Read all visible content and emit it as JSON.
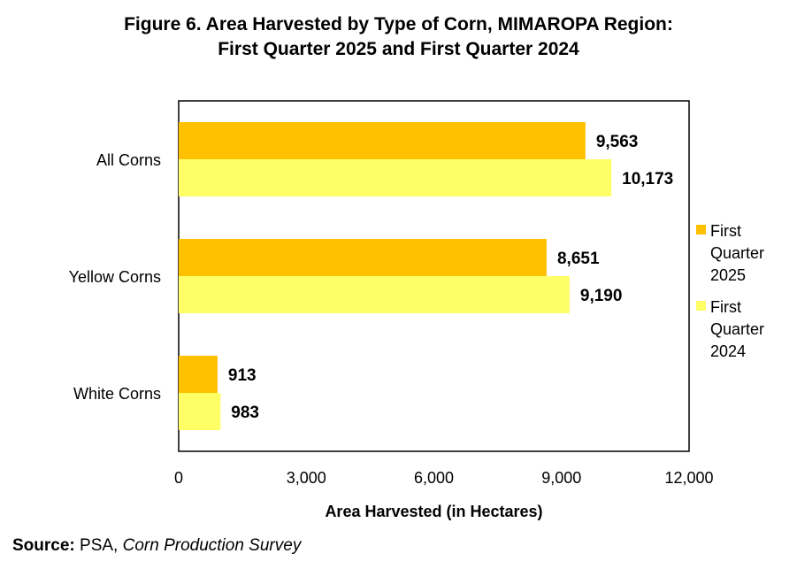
{
  "chart_data": {
    "type": "bar",
    "orientation": "horizontal",
    "title_line1": "Figure 6. Area Harvested by Type of Corn, MIMAROPA Region:",
    "title_line2": "First Quarter 2025 and First Quarter 2024",
    "categories": [
      "All Corns",
      "Yellow Corns",
      "White Corns"
    ],
    "series": [
      {
        "name_lines": [
          "First",
          "Quarter",
          "2025"
        ],
        "values": [
          9563,
          8651,
          913
        ],
        "labels": [
          "9,563",
          "8,651",
          "913"
        ],
        "color": "#FFC000"
      },
      {
        "name_lines": [
          "First",
          "Quarter",
          "2024"
        ],
        "values": [
          10173,
          9190,
          983
        ],
        "labels": [
          "10,173",
          "9,190",
          "983"
        ],
        "color": "#FFFF66"
      }
    ],
    "xlabel": "Area Harvested (in Hectares)",
    "xlim": [
      0,
      12000
    ],
    "xticks": [
      0,
      3000,
      6000,
      9000,
      12000
    ],
    "xtick_labels": [
      "0",
      "3,000",
      "6,000",
      "9,000",
      "12,000"
    ],
    "grid": false,
    "legend_position": "right"
  },
  "source": {
    "label": "Source:",
    "text": " PSA, ",
    "survey": "Corn Production Survey"
  }
}
